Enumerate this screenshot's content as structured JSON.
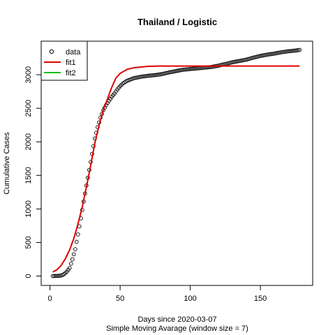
{
  "chart_data": {
    "type": "scatter",
    "title": "Thailand / Logistic",
    "xlabel": "Days since 2020-03-07",
    "subtitle": "Simple Moving Avarage (window size = 7)",
    "ylabel": "Cumulative Cases",
    "xlim": [
      -6.28,
      187.28
    ],
    "ylim": [
      -140,
      3500
    ],
    "xticks": [
      "0",
      "50",
      "100",
      "150"
    ],
    "xtick_values": [
      0,
      50,
      100,
      150
    ],
    "yticks": [
      "0",
      "500",
      "1000",
      "1500",
      "2000",
      "2500",
      "3000"
    ],
    "ytick_values": [
      0,
      500,
      1000,
      1500,
      2000,
      2500,
      3000
    ],
    "grid": false,
    "legend": {
      "position": "top-left",
      "entries": [
        {
          "label": "data",
          "symbol": "circle",
          "color": "#000000"
        },
        {
          "label": "fit1",
          "symbol": "line",
          "color": "#e00000"
        },
        {
          "label": "fit2",
          "symbol": "line",
          "color": "#00c000"
        }
      ]
    },
    "series": [
      {
        "name": "data",
        "kind": "points",
        "color": "#000000",
        "x_start": 2,
        "x_end": 178,
        "knots": [
          [
            2,
            0
          ],
          [
            6,
            3
          ],
          [
            8,
            8
          ],
          [
            10,
            28
          ],
          [
            12,
            65
          ],
          [
            14,
            120
          ],
          [
            16,
            250
          ],
          [
            18,
            400
          ],
          [
            20,
            620
          ],
          [
            22,
            860
          ],
          [
            24,
            1110
          ],
          [
            26,
            1350
          ],
          [
            28,
            1580
          ],
          [
            30,
            1820
          ],
          [
            32,
            2050
          ],
          [
            34,
            2220
          ],
          [
            36,
            2360
          ],
          [
            38,
            2470
          ],
          [
            40,
            2550
          ],
          [
            42,
            2610
          ],
          [
            44,
            2670
          ],
          [
            46,
            2720
          ],
          [
            48,
            2780
          ],
          [
            50,
            2830
          ],
          [
            52,
            2870
          ],
          [
            55,
            2910
          ],
          [
            60,
            2950
          ],
          [
            65,
            2970
          ],
          [
            70,
            2985
          ],
          [
            75,
            2995
          ],
          [
            80,
            3010
          ],
          [
            85,
            3035
          ],
          [
            90,
            3055
          ],
          [
            95,
            3075
          ],
          [
            100,
            3085
          ],
          [
            105,
            3095
          ],
          [
            110,
            3105
          ],
          [
            115,
            3115
          ],
          [
            120,
            3135
          ],
          [
            125,
            3160
          ],
          [
            130,
            3185
          ],
          [
            135,
            3205
          ],
          [
            140,
            3225
          ],
          [
            145,
            3255
          ],
          [
            150,
            3280
          ],
          [
            155,
            3300
          ],
          [
            160,
            3315
          ],
          [
            165,
            3335
          ],
          [
            170,
            3350
          ],
          [
            175,
            3360
          ],
          [
            178,
            3370
          ]
        ]
      },
      {
        "name": "fit1",
        "kind": "line",
        "color": "#e00000",
        "x_start": 2,
        "x_end": 178,
        "knots": [
          [
            2,
            60
          ],
          [
            5,
            95
          ],
          [
            8,
            160
          ],
          [
            11,
            260
          ],
          [
            14,
            390
          ],
          [
            17,
            560
          ],
          [
            20,
            780
          ],
          [
            23,
            1030
          ],
          [
            26,
            1330
          ],
          [
            29,
            1650
          ],
          [
            32,
            1980
          ],
          [
            35,
            2250
          ],
          [
            38,
            2470
          ],
          [
            41,
            2640
          ],
          [
            44,
            2810
          ],
          [
            47,
            2950
          ],
          [
            50,
            3020
          ],
          [
            55,
            3080
          ],
          [
            60,
            3105
          ],
          [
            70,
            3125
          ],
          [
            80,
            3130
          ],
          [
            100,
            3130
          ],
          [
            178,
            3130
          ]
        ]
      },
      {
        "name": "fit2",
        "kind": "line",
        "color": "#00c000",
        "x_start": 2,
        "x_end": 178,
        "knots": []
      }
    ]
  }
}
